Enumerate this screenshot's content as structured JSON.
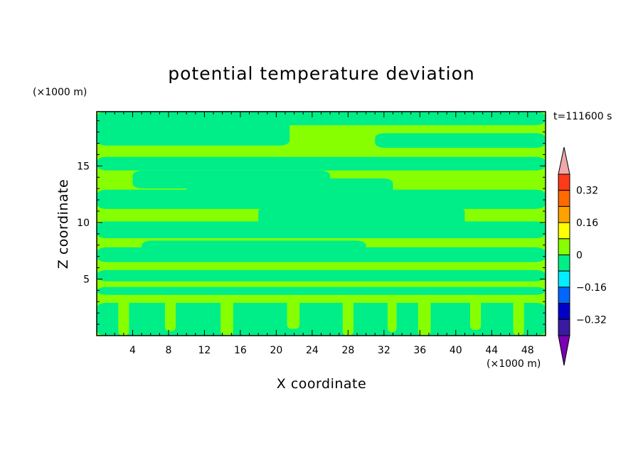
{
  "chart_data": {
    "type": "heatmap",
    "title": "potential temperature deviation",
    "xlabel": "X coordinate",
    "ylabel": "Z coordinate",
    "x_unit": "(×1000 m)",
    "y_unit": "(×1000 m)",
    "time_label": "t=111600 s",
    "xlim": [
      0,
      50
    ],
    "ylim": [
      0,
      19.8
    ],
    "x_ticks": [
      4,
      8,
      12,
      16,
      20,
      24,
      28,
      32,
      36,
      40,
      44,
      48
    ],
    "y_ticks": [
      5,
      10,
      15
    ],
    "colorbar": {
      "labels": [
        {
          "value": 0.32,
          "text": "0.32"
        },
        {
          "value": 0.16,
          "text": "0.16"
        },
        {
          "value": 0,
          "text": "0"
        },
        {
          "value": -0.16,
          "text": "−0.16"
        },
        {
          "value": -0.32,
          "text": "−0.32"
        }
      ],
      "levels": [
        {
          "min": 0.4,
          "max": null,
          "color": "#f0a8a8"
        },
        {
          "min": 0.32,
          "max": 0.4,
          "color": "#ff3a1a"
        },
        {
          "min": 0.24,
          "max": 0.32,
          "color": "#ff6a00"
        },
        {
          "min": 0.16,
          "max": 0.24,
          "color": "#ffa200"
        },
        {
          "min": 0.08,
          "max": 0.16,
          "color": "#ffff00"
        },
        {
          "min": 0,
          "max": 0.08,
          "color": "#88ff00"
        },
        {
          "min": -0.08,
          "max": 0,
          "color": "#00ee88"
        },
        {
          "min": -0.16,
          "max": -0.08,
          "color": "#00eeff"
        },
        {
          "min": -0.24,
          "max": -0.16,
          "color": "#0066ff"
        },
        {
          "min": -0.32,
          "max": -0.24,
          "color": "#0000c8"
        },
        {
          "min": -0.4,
          "max": -0.32,
          "color": "#3a1aa0"
        },
        {
          "min": null,
          "max": -0.4,
          "color": "#7a00b4"
        }
      ]
    },
    "field": {
      "background_level": "0 to 0.08",
      "background_color": "#88ff00",
      "patches_level": "-0.08 to 0",
      "patches_color": "#00ee88",
      "patches": [
        {
          "x": [
            0,
            50
          ],
          "y": [
            18.6,
            19.8
          ]
        },
        {
          "x": [
            0,
            21.5
          ],
          "y": [
            16.8,
            19.8
          ]
        },
        {
          "x": [
            31,
            50
          ],
          "y": [
            16.6,
            17.9
          ]
        },
        {
          "x": [
            0,
            50
          ],
          "y": [
            14.6,
            15.8
          ]
        },
        {
          "x": [
            4,
            26
          ],
          "y": [
            13.0,
            14.6
          ]
        },
        {
          "x": [
            0,
            50
          ],
          "y": [
            11.2,
            12.9
          ]
        },
        {
          "x": [
            10,
            33
          ],
          "y": [
            12.4,
            13.9
          ]
        },
        {
          "x": [
            0,
            50
          ],
          "y": [
            8.6,
            10.1
          ]
        },
        {
          "x": [
            18,
            41
          ],
          "y": [
            9.6,
            11.4
          ]
        },
        {
          "x": [
            0,
            50
          ],
          "y": [
            6.5,
            7.8
          ]
        },
        {
          "x": [
            5,
            30
          ],
          "y": [
            7.0,
            8.4
          ]
        },
        {
          "x": [
            0,
            50
          ],
          "y": [
            4.8,
            5.8
          ]
        },
        {
          "x": [
            0,
            50
          ],
          "y": [
            3.6,
            4.3
          ]
        },
        {
          "x": [
            0,
            50
          ],
          "y": [
            0,
            2.9
          ]
        }
      ],
      "columns_level": "0 to 0.08",
      "columns_color": "#88ff00",
      "columns": [
        {
          "x": [
            2.4,
            3.6
          ],
          "y": [
            0,
            3.2
          ]
        },
        {
          "x": [
            7.6,
            8.8
          ],
          "y": [
            0.4,
            3.2
          ]
        },
        {
          "x": [
            13.8,
            15.2
          ],
          "y": [
            0,
            3.2
          ]
        },
        {
          "x": [
            21.2,
            22.6
          ],
          "y": [
            0.6,
            3.2
          ]
        },
        {
          "x": [
            27.4,
            28.6
          ],
          "y": [
            0,
            3.2
          ]
        },
        {
          "x": [
            32.4,
            33.4
          ],
          "y": [
            0.3,
            3.2
          ]
        },
        {
          "x": [
            35.8,
            37.2
          ],
          "y": [
            0,
            3.2
          ]
        },
        {
          "x": [
            41.6,
            42.8
          ],
          "y": [
            0.5,
            3.2
          ]
        },
        {
          "x": [
            46.4,
            47.6
          ],
          "y": [
            0,
            3.2
          ]
        }
      ]
    }
  }
}
